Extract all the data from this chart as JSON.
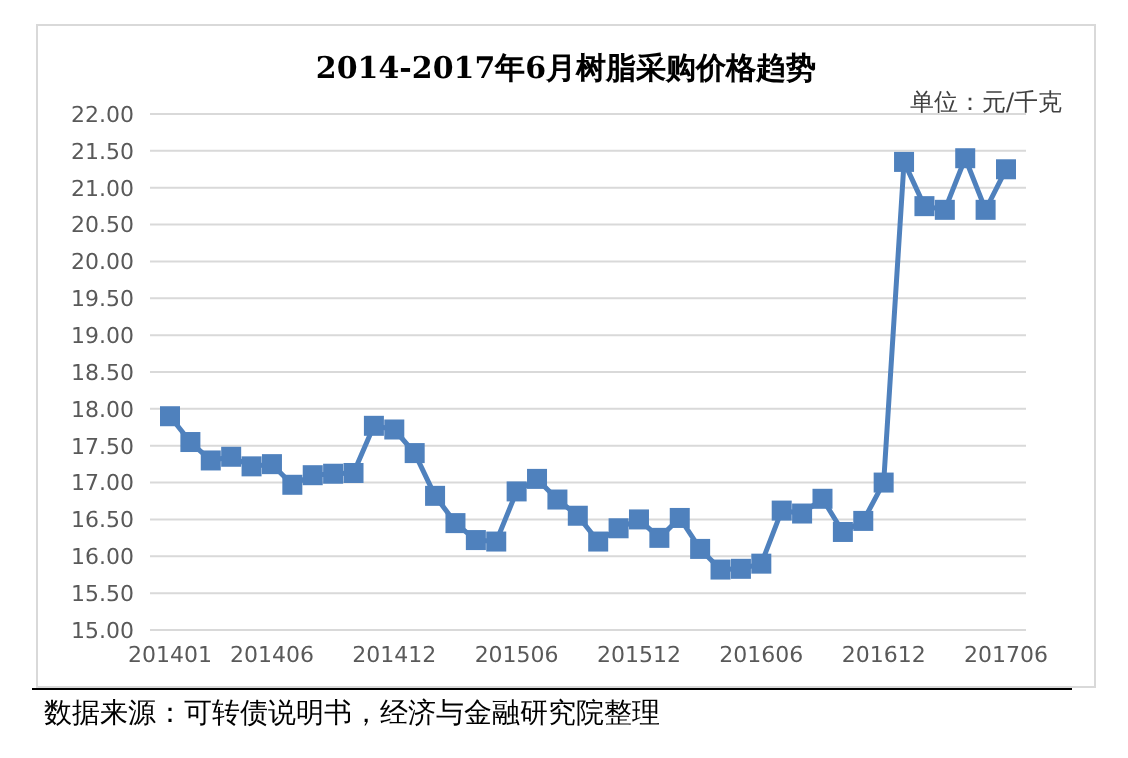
{
  "chart_data": {
    "type": "line",
    "title": "2014-2017年6月树脂采购价格趋势",
    "annotations": [
      "单位：元/千克",
      "数据来源：可转债说明书，经济与金融研究院整理"
    ],
    "categories": [
      "201401",
      null,
      null,
      null,
      null,
      "201406",
      null,
      null,
      null,
      null,
      null,
      "201412",
      null,
      null,
      null,
      null,
      null,
      "201506",
      null,
      null,
      null,
      null,
      null,
      "201512",
      null,
      null,
      null,
      null,
      null,
      "201606",
      null,
      null,
      null,
      null,
      null,
      "201612",
      null,
      null,
      null,
      null,
      null,
      "201706"
    ],
    "series": [
      {
        "color": "#4f81bd",
        "values": [
          17.9,
          17.55,
          17.3,
          17.35,
          17.22,
          17.25,
          16.97,
          17.1,
          17.12,
          17.13,
          17.77,
          17.72,
          17.4,
          16.82,
          16.45,
          16.22,
          16.2,
          16.88,
          17.05,
          16.77,
          16.55,
          16.2,
          16.38,
          16.5,
          16.25,
          16.52,
          16.1,
          15.82,
          15.83,
          15.9,
          16.62,
          16.58,
          16.78,
          16.33,
          16.48,
          17.0,
          21.35,
          20.75,
          20.7,
          21.4,
          20.7,
          21.25
        ]
      }
    ],
    "ylim": [
      15,
      22
    ],
    "yticks": [
      {
        "value": 15,
        "label": "15.00"
      },
      {
        "value": 15.5,
        "label": "15.50"
      },
      {
        "value": 16,
        "label": "16.00"
      },
      {
        "value": 16.5,
        "label": "16.50"
      },
      {
        "value": 17,
        "label": "17.00"
      },
      {
        "value": 17.5,
        "label": "17.50"
      },
      {
        "value": 18,
        "label": "18.00"
      },
      {
        "value": 18.5,
        "label": "18.50"
      },
      {
        "value": 19,
        "label": "19.00"
      },
      {
        "value": 19.5,
        "label": "19.50"
      },
      {
        "value": 20,
        "label": "20.00"
      },
      {
        "value": 20.5,
        "label": "20.50"
      },
      {
        "value": 21,
        "label": "21.00"
      },
      {
        "value": 21.5,
        "label": "21.50"
      },
      {
        "value": 22,
        "label": "22.00"
      }
    ],
    "grid": "y",
    "marker": "square",
    "line_style": "solid",
    "legend": false
  }
}
